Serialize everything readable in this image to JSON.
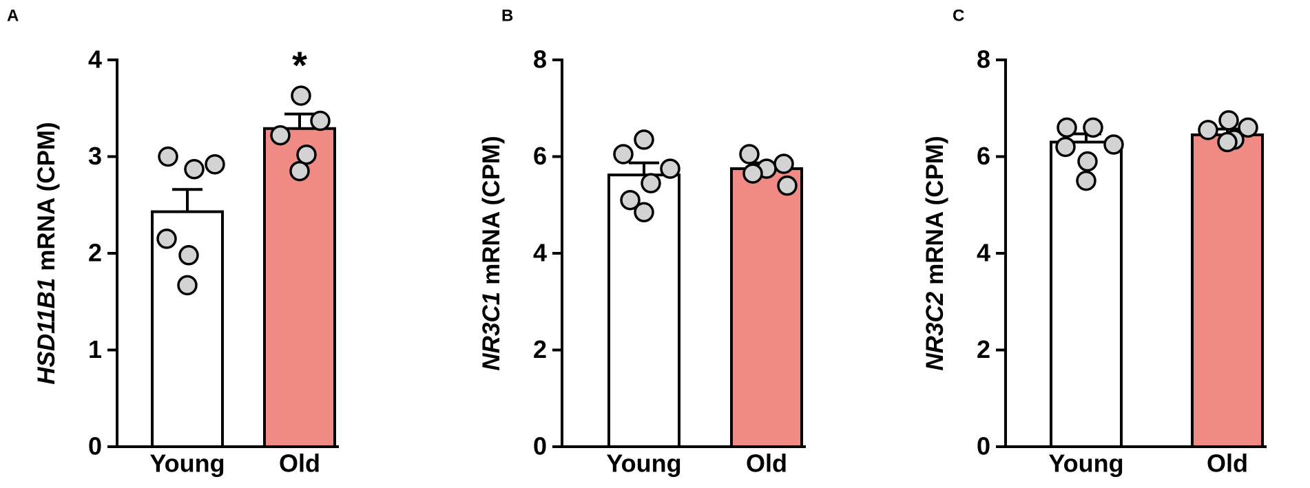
{
  "chart_data": [
    {
      "type": "bar",
      "panel": "A",
      "ylabel_gene": "HSD11B1",
      "ylabel": "mRNA (CPM)",
      "categories": [
        "Young",
        "Old"
      ],
      "values": [
        2.43,
        3.29
      ],
      "errors": [
        0.23,
        0.15
      ],
      "points": [
        [
          3.0,
          2.87,
          2.92,
          2.15,
          1.98,
          1.67
        ],
        [
          3.63,
          3.37,
          3.22,
          3.02,
          2.85
        ]
      ],
      "colors": [
        "#ffffff",
        "#f08a84"
      ],
      "annotation": "*",
      "ylim": [
        0,
        4
      ],
      "yticks": [
        0,
        1,
        2,
        3,
        4
      ]
    },
    {
      "type": "bar",
      "panel": "B",
      "ylabel_gene": "NR3C1",
      "ylabel": "mRNA (CPM)",
      "categories": [
        "Young",
        "Old"
      ],
      "values": [
        5.62,
        5.75
      ],
      "errors": [
        0.25,
        0.12
      ],
      "points": [
        [
          6.05,
          6.35,
          5.75,
          5.45,
          5.1,
          4.85
        ],
        [
          6.05,
          5.85,
          5.75,
          5.65,
          5.4
        ]
      ],
      "colors": [
        "#ffffff",
        "#f08a84"
      ],
      "ylim": [
        0,
        8
      ],
      "yticks": [
        0,
        2,
        4,
        6,
        8
      ]
    },
    {
      "type": "bar",
      "panel": "C",
      "ylabel_gene": "NR3C2",
      "ylabel": "mRNA (CPM)",
      "categories": [
        "Young",
        "Old"
      ],
      "values": [
        6.3,
        6.45
      ],
      "errors": [
        0.17,
        0.12
      ],
      "points": [
        [
          6.6,
          6.6,
          6.25,
          6.2,
          5.9,
          5.5
        ],
        [
          6.75,
          6.6,
          6.55,
          6.35,
          6.3
        ]
      ],
      "colors": [
        "#ffffff",
        "#f08a84"
      ],
      "ylim": [
        0,
        8
      ],
      "yticks": [
        0,
        2,
        4,
        6,
        8
      ]
    }
  ]
}
